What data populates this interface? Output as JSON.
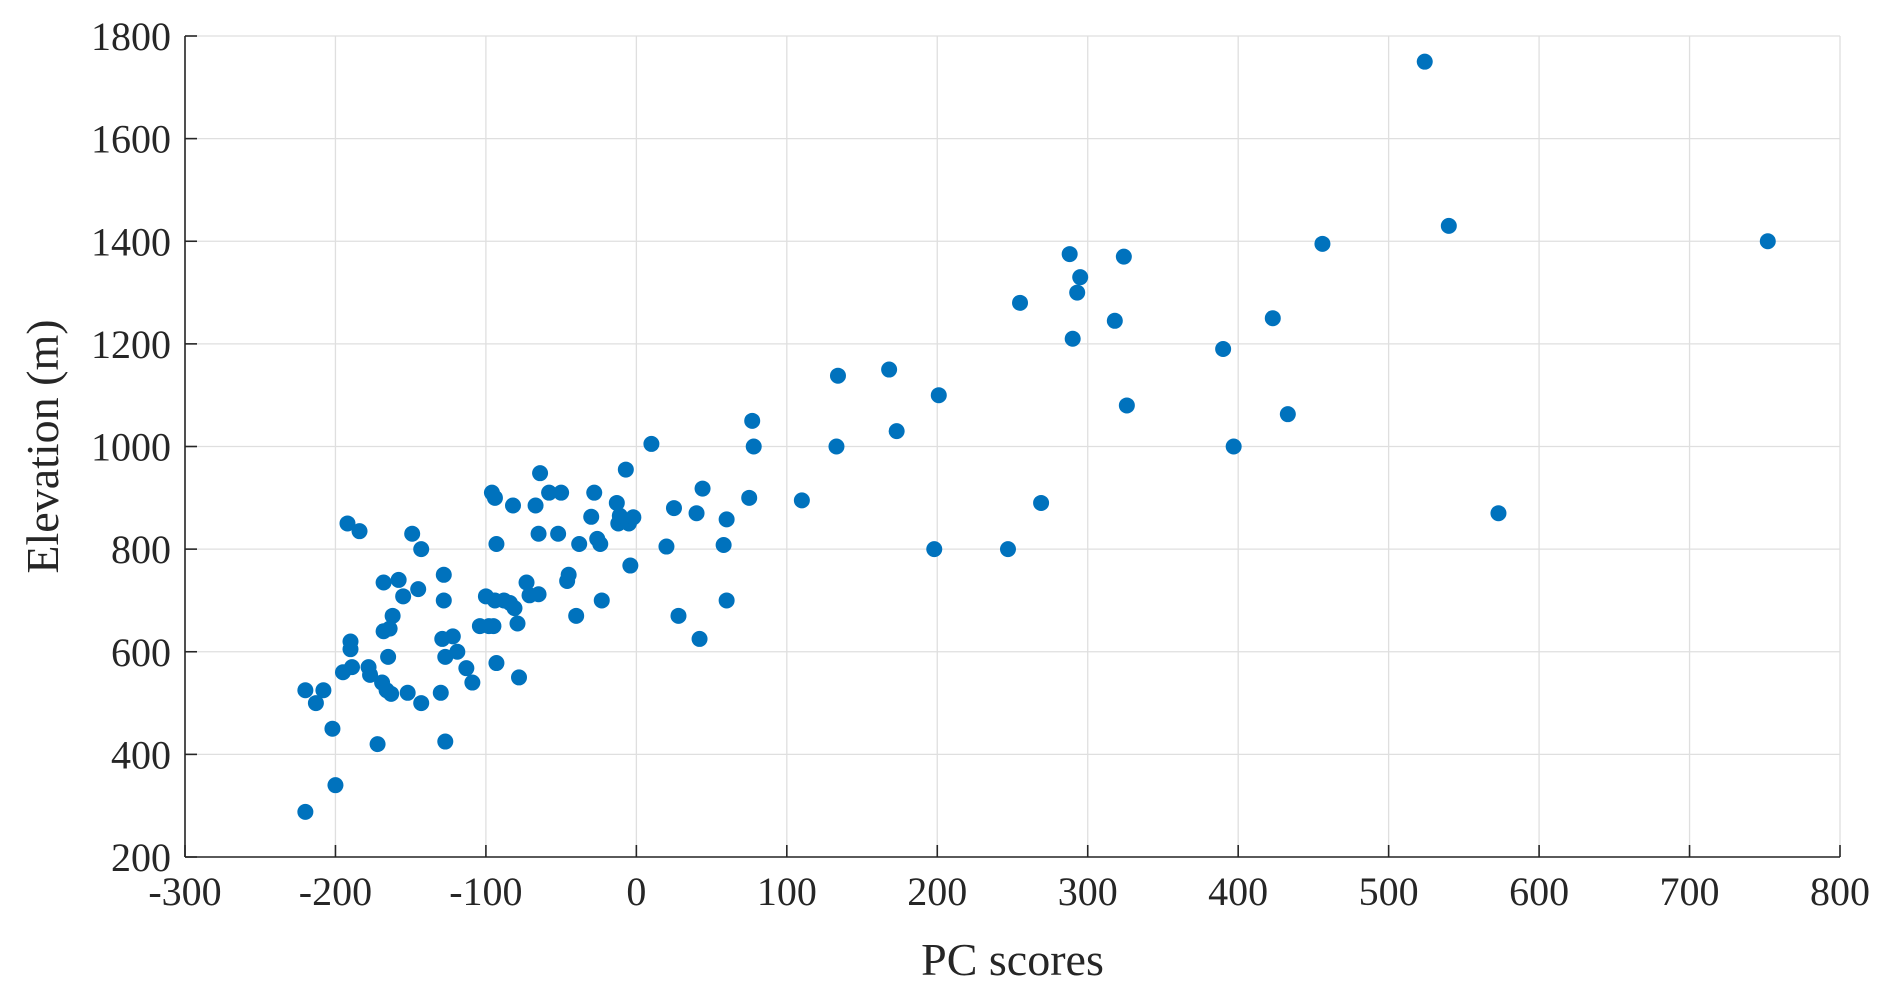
{
  "chart_data": {
    "type": "scatter",
    "title": "",
    "xlabel": "PC scores",
    "ylabel": "Elevation (m)",
    "xlim": [
      -300,
      800
    ],
    "ylim": [
      200,
      1800
    ],
    "xticks": [
      -300,
      -200,
      -100,
      0,
      100,
      200,
      300,
      400,
      500,
      600,
      700,
      800
    ],
    "yticks": [
      200,
      400,
      600,
      800,
      1000,
      1200,
      1400,
      1600,
      1800
    ],
    "xtick_labels": [
      "-300",
      "-200",
      "-100",
      "0",
      "100",
      "200",
      "300",
      "400",
      "500",
      "600",
      "700",
      "800"
    ],
    "ytick_labels": [
      "200",
      "400",
      "600",
      "800",
      "1000",
      "1200",
      "1400",
      "1600",
      "1800"
    ],
    "grid": true,
    "marker_color": "#0072BD",
    "points": [
      [
        -220,
        288
      ],
      [
        -220,
        525
      ],
      [
        -213,
        500
      ],
      [
        -208,
        525
      ],
      [
        -202,
        450
      ],
      [
        -200,
        340
      ],
      [
        -195,
        560
      ],
      [
        -192,
        850
      ],
      [
        -190,
        605
      ],
      [
        -190,
        620
      ],
      [
        -189,
        570
      ],
      [
        -184,
        835
      ],
      [
        -178,
        570
      ],
      [
        -177,
        555
      ],
      [
        -172,
        420
      ],
      [
        -169,
        540
      ],
      [
        -168,
        640
      ],
      [
        -168,
        735
      ],
      [
        -166,
        525
      ],
      [
        -165,
        590
      ],
      [
        -164,
        645
      ],
      [
        -163,
        518
      ],
      [
        -162,
        670
      ],
      [
        -158,
        740
      ],
      [
        -155,
        708
      ],
      [
        -152,
        520
      ],
      [
        -149,
        830
      ],
      [
        -145,
        722
      ],
      [
        -143,
        500
      ],
      [
        -143,
        800
      ],
      [
        -130,
        520
      ],
      [
        -129,
        625
      ],
      [
        -128,
        700
      ],
      [
        -128,
        750
      ],
      [
        -127,
        425
      ],
      [
        -127,
        590
      ],
      [
        -122,
        630
      ],
      [
        -119,
        600
      ],
      [
        -113,
        568
      ],
      [
        -109,
        540
      ],
      [
        -104,
        650
      ],
      [
        -100,
        708
      ],
      [
        -98,
        650
      ],
      [
        -96,
        910
      ],
      [
        -95,
        650
      ],
      [
        -94,
        900
      ],
      [
        -94,
        700
      ],
      [
        -93,
        810
      ],
      [
        -93,
        578
      ],
      [
        -88,
        700
      ],
      [
        -84,
        695
      ],
      [
        -82,
        885
      ],
      [
        -81,
        685
      ],
      [
        -79,
        655
      ],
      [
        -78,
        550
      ],
      [
        -73,
        735
      ],
      [
        -71,
        710
      ],
      [
        -67,
        885
      ],
      [
        -65,
        830
      ],
      [
        -65,
        712
      ],
      [
        -64,
        948
      ],
      [
        -58,
        910
      ],
      [
        -52,
        830
      ],
      [
        -50,
        910
      ],
      [
        -46,
        738
      ],
      [
        -45,
        750
      ],
      [
        -40,
        670
      ],
      [
        -38,
        810
      ],
      [
        -30,
        863
      ],
      [
        -28,
        910
      ],
      [
        -26,
        820
      ],
      [
        -24,
        810
      ],
      [
        -23,
        700
      ],
      [
        -13,
        890
      ],
      [
        -12,
        850
      ],
      [
        -11,
        865
      ],
      [
        -7,
        955
      ],
      [
        -5,
        850
      ],
      [
        -4,
        768
      ],
      [
        -2,
        862
      ],
      [
        10,
        1005
      ],
      [
        20,
        805
      ],
      [
        25,
        880
      ],
      [
        28,
        670
      ],
      [
        40,
        870
      ],
      [
        42,
        625
      ],
      [
        44,
        918
      ],
      [
        58,
        808
      ],
      [
        60,
        858
      ],
      [
        60,
        700
      ],
      [
        75,
        900
      ],
      [
        77,
        1050
      ],
      [
        78,
        1000
      ],
      [
        110,
        895
      ],
      [
        133,
        1000
      ],
      [
        134,
        1138
      ],
      [
        168,
        1150
      ],
      [
        173,
        1030
      ],
      [
        198,
        800
      ],
      [
        201,
        1100
      ],
      [
        247,
        800
      ],
      [
        255,
        1280
      ],
      [
        269,
        890
      ],
      [
        288,
        1375
      ],
      [
        290,
        1210
      ],
      [
        293,
        1300
      ],
      [
        295,
        1330
      ],
      [
        318,
        1245
      ],
      [
        324,
        1370
      ],
      [
        326,
        1080
      ],
      [
        390,
        1190
      ],
      [
        397,
        1000
      ],
      [
        423,
        1250
      ],
      [
        433,
        1063
      ],
      [
        456,
        1395
      ],
      [
        524,
        1750
      ],
      [
        540,
        1430
      ],
      [
        573,
        870
      ],
      [
        752,
        1400
      ]
    ]
  }
}
